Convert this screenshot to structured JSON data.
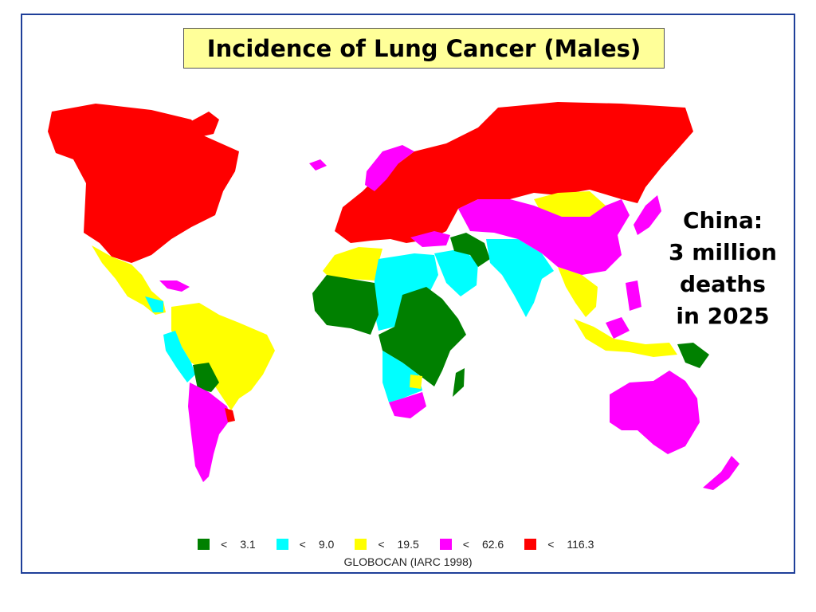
{
  "title": "Incidence of Lung Cancer (Males)",
  "callout": {
    "lines": [
      "China:",
      "3 million",
      "deaths",
      "in 2025"
    ]
  },
  "legend": {
    "items": [
      {
        "symbol": "<",
        "value": "3.1",
        "color": "#008000"
      },
      {
        "symbol": "<",
        "value": "9.0",
        "color": "#00ffff"
      },
      {
        "symbol": "<",
        "value": "19.5",
        "color": "#ffff00"
      },
      {
        "symbol": "<",
        "value": "62.6",
        "color": "#ff00ff"
      },
      {
        "symbol": "<",
        "value": "116.3",
        "color": "#ff0000"
      }
    ]
  },
  "source": "GLOBOCAN (IARC 1998)",
  "map_regions": [
    {
      "region": "north-america",
      "class": "< 116.3"
    },
    {
      "region": "mexico-central-america",
      "class": "< 19.5"
    },
    {
      "region": "caribbean",
      "class": "< 62.6"
    },
    {
      "region": "colombia-venezuela-brazil",
      "class": "< 19.5"
    },
    {
      "region": "peru-ecuador",
      "class": "< 9.0"
    },
    {
      "region": "bolivia",
      "class": "< 3.1"
    },
    {
      "region": "chile-argentina",
      "class": "< 62.6"
    },
    {
      "region": "uruguay",
      "class": "< 116.3"
    },
    {
      "region": "europe-russia",
      "class": "< 116.3"
    },
    {
      "region": "scandinavia",
      "class": "< 62.6"
    },
    {
      "region": "iceland",
      "class": "< 62.6"
    },
    {
      "region": "north-africa",
      "class": "< 19.5"
    },
    {
      "region": "egypt-sudan",
      "class": "< 9.0"
    },
    {
      "region": "west-africa",
      "class": "< 3.1"
    },
    {
      "region": "east-central-africa",
      "class": "< 3.1"
    },
    {
      "region": "southern-africa",
      "class": "< 9.0"
    },
    {
      "region": "south-africa",
      "class": "< 62.6"
    },
    {
      "region": "madagascar",
      "class": "< 3.1"
    },
    {
      "region": "arabia",
      "class": "< 9.0"
    },
    {
      "region": "iran-afghanistan",
      "class": "< 3.1"
    },
    {
      "region": "india",
      "class": "< 9.0"
    },
    {
      "region": "mongolia",
      "class": "< 19.5"
    },
    {
      "region": "china",
      "class": "< 62.6"
    },
    {
      "region": "southeast-asia",
      "class": "< 19.5"
    },
    {
      "region": "japan-philippines",
      "class": "< 62.6"
    },
    {
      "region": "indonesia",
      "class": "< 19.5"
    },
    {
      "region": "papua-new-guinea",
      "class": "< 3.1"
    },
    {
      "region": "australia",
      "class": "< 62.6"
    },
    {
      "region": "new-zealand",
      "class": "< 62.6"
    }
  ]
}
